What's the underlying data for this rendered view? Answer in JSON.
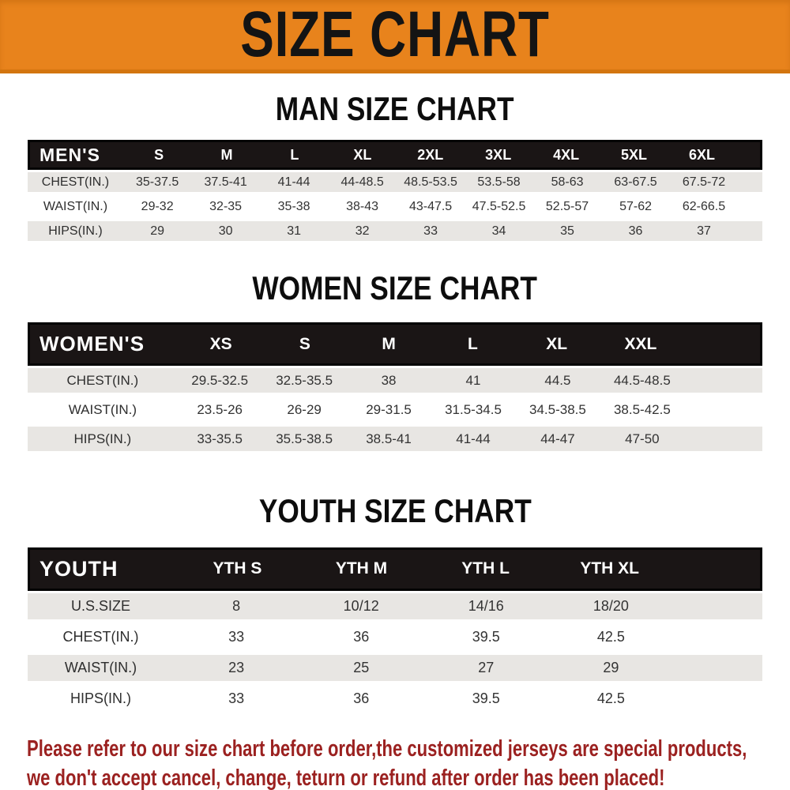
{
  "banner": {
    "title": "SIZE CHART"
  },
  "sections": [
    {
      "heading": "MAN SIZE CHART",
      "header": {
        "label": "MEN'S",
        "sizes": [
          "S",
          "M",
          "L",
          "XL",
          "2XL",
          "3XL",
          "4XL",
          "5XL",
          "6XL"
        ]
      },
      "rows": [
        {
          "label": "CHEST(IN.)",
          "values": [
            "35-37.5",
            "37.5-41",
            "41-44",
            "44-48.5",
            "48.5-53.5",
            "53.5-58",
            "58-63",
            "63-67.5",
            "67.5-72"
          ]
        },
        {
          "label": "WAIST(IN.)",
          "values": [
            "29-32",
            "32-35",
            "35-38",
            "38-43",
            "43-47.5",
            "47.5-52.5",
            "52.5-57",
            "57-62",
            "62-66.5"
          ]
        },
        {
          "label": "HIPS(IN.)",
          "values": [
            "29",
            "30",
            "31",
            "32",
            "33",
            "34",
            "35",
            "36",
            "37"
          ]
        }
      ]
    },
    {
      "heading": "WOMEN SIZE CHART",
      "header": {
        "label": "WOMEN'S",
        "sizes": [
          "XS",
          "S",
          "M",
          "L",
          "XL",
          "XXL"
        ]
      },
      "rows": [
        {
          "label": "CHEST(IN.)",
          "values": [
            "29.5-32.5",
            "32.5-35.5",
            "38",
            "41",
            "44.5",
            "44.5-48.5"
          ]
        },
        {
          "label": "WAIST(IN.)",
          "values": [
            "23.5-26",
            "26-29",
            "29-31.5",
            "31.5-34.5",
            "34.5-38.5",
            "38.5-42.5"
          ]
        },
        {
          "label": "HIPS(IN.)",
          "values": [
            "33-35.5",
            "35.5-38.5",
            "38.5-41",
            "41-44",
            "44-47",
            "47-50"
          ]
        }
      ]
    },
    {
      "heading": "YOUTH SIZE CHART",
      "header": {
        "label": "YOUTH",
        "sizes": [
          "YTH S",
          "YTH M",
          "YTH L",
          "YTH XL"
        ]
      },
      "rows": [
        {
          "label": "U.S.SIZE",
          "values": [
            "8",
            "10/12",
            "14/16",
            "18/20"
          ]
        },
        {
          "label": "CHEST(IN.)",
          "values": [
            "33",
            "36",
            "39.5",
            "42.5"
          ]
        },
        {
          "label": "WAIST(IN.)",
          "values": [
            "23",
            "25",
            "27",
            "29"
          ]
        },
        {
          "label": "HIPS(IN.)",
          "values": [
            "33",
            "36",
            "39.5",
            "42.5"
          ]
        }
      ]
    }
  ],
  "footer": {
    "line1": "Please refer to our size chart before order,the customized jerseys are special products,",
    "line2": "we don't accept cancel, change, teturn or refund after order has been placed!"
  },
  "colors": {
    "banner_bg": "#e8831c",
    "banner_border": "#d3750f",
    "header_bar_bg": "#1a1515",
    "row_stripe": "#e8e6e3",
    "footer_text": "#9b2120"
  }
}
